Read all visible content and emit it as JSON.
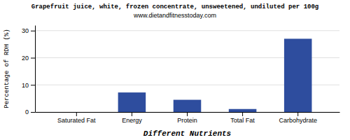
{
  "chart_data": {
    "type": "bar",
    "title": "Grapefruit juice, white, frozen concentrate, unsweetened, undiluted per 100g",
    "subtitle": "www.dietandfitnesstoday.com",
    "xlabel": "Different Nutrients",
    "ylabel": "Percentage of RDH (%)",
    "categories": [
      "Saturated Fat",
      "Energy",
      "Protein",
      "Total Fat",
      "Carbohydrate"
    ],
    "values": [
      0.0,
      7.2,
      4.5,
      1.1,
      27.0
    ],
    "color": "#2e4d9e",
    "ylim": [
      0,
      32
    ],
    "yticks": [
      0,
      10,
      20,
      30
    ],
    "grid": true
  }
}
